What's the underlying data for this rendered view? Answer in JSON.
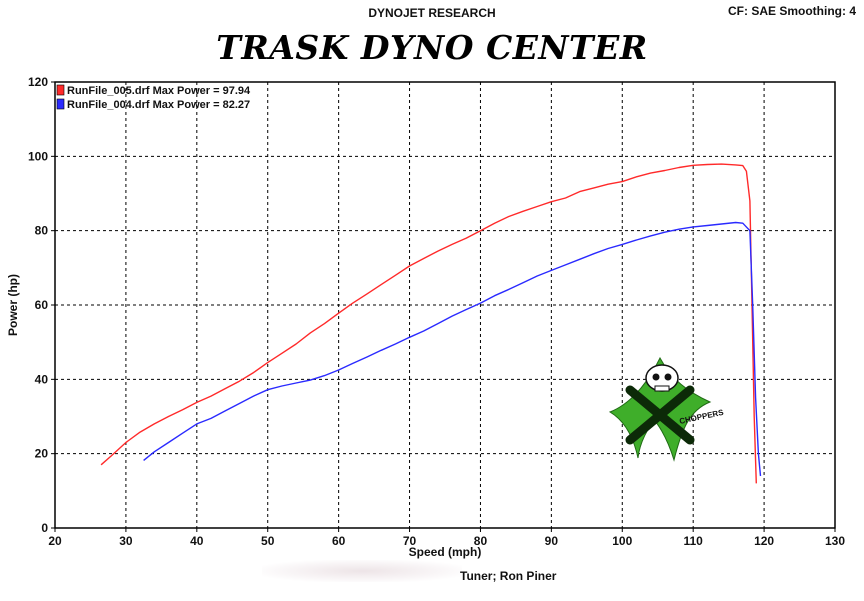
{
  "header": {
    "brand": "DYNOJET RESEARCH",
    "settings": "CF: SAE  Smoothing: 4",
    "tuner": "Tuner; Ron Piner"
  },
  "logo_text": "CHOPPERS",
  "colors": {
    "run005": "#ff2a2a",
    "run004": "#2a2aff",
    "grid": "#000000",
    "frame": "#000000"
  },
  "chart_data": {
    "type": "line",
    "title": "TRASK DYNO CENTER",
    "xlabel": "Speed (mph)",
    "ylabel": "Power (hp)",
    "xlim": [
      20,
      130
    ],
    "ylim": [
      0,
      120
    ],
    "xticks": [
      20,
      30,
      40,
      50,
      60,
      70,
      80,
      90,
      100,
      110,
      120,
      130
    ],
    "yticks": [
      0,
      20,
      40,
      60,
      80,
      100,
      120
    ],
    "grid": true,
    "legend_position": "top-left",
    "series": [
      {
        "name": "RunFile_005.drf Max Power = 97.94",
        "color": "#ff2a2a",
        "x": [
          26.5,
          28,
          30,
          32,
          34,
          36,
          38,
          40,
          42,
          44,
          46,
          48,
          50,
          52,
          54,
          56,
          58,
          60,
          62,
          64,
          66,
          68,
          70,
          72,
          74,
          76,
          78,
          80,
          82,
          84,
          86,
          88,
          90,
          92,
          94,
          96,
          98,
          100,
          102,
          104,
          106,
          108,
          110,
          112,
          114,
          116,
          117,
          117.5,
          118,
          118.3,
          118.6,
          118.9
        ],
        "y": [
          17,
          19.5,
          23,
          25.8,
          28,
          30,
          31.8,
          33.8,
          35.5,
          37.5,
          39.5,
          41.8,
          44.5,
          47,
          49.5,
          52.5,
          55,
          57.8,
          60.5,
          63,
          65.5,
          68,
          70.5,
          72.5,
          74.5,
          76.3,
          78,
          80,
          82,
          83.8,
          85.2,
          86.5,
          87.8,
          88.8,
          90.5,
          91.5,
          92.5,
          93.2,
          94.5,
          95.5,
          96.2,
          97,
          97.6,
          97.8,
          97.9,
          97.7,
          97.5,
          96,
          88,
          60,
          30,
          12
        ]
      },
      {
        "name": "RunFile_004.drf Max Power = 82.27",
        "color": "#2a2aff",
        "x": [
          32.5,
          34,
          36,
          38,
          40,
          42,
          44,
          46,
          48,
          50,
          52,
          54,
          56,
          58,
          60,
          62,
          64,
          66,
          68,
          70,
          72,
          74,
          76,
          78,
          80,
          82,
          84,
          86,
          88,
          90,
          92,
          94,
          96,
          98,
          100,
          102,
          104,
          106,
          108,
          110,
          112,
          114,
          116,
          117,
          118,
          118.4,
          118.8,
          119.2,
          119.5
        ],
        "y": [
          18.2,
          20.5,
          23,
          25.5,
          28,
          29.5,
          31.5,
          33.5,
          35.5,
          37.2,
          38.2,
          39,
          39.8,
          41,
          42.5,
          44.3,
          46,
          47.8,
          49.5,
          51.3,
          53,
          55,
          57,
          58.8,
          60.5,
          62.5,
          64.2,
          66,
          67.8,
          69.3,
          70.8,
          72.3,
          73.8,
          75.2,
          76.3,
          77.5,
          78.6,
          79.6,
          80.4,
          81,
          81.4,
          81.8,
          82.2,
          82,
          80,
          60,
          35,
          20,
          14
        ]
      }
    ]
  }
}
